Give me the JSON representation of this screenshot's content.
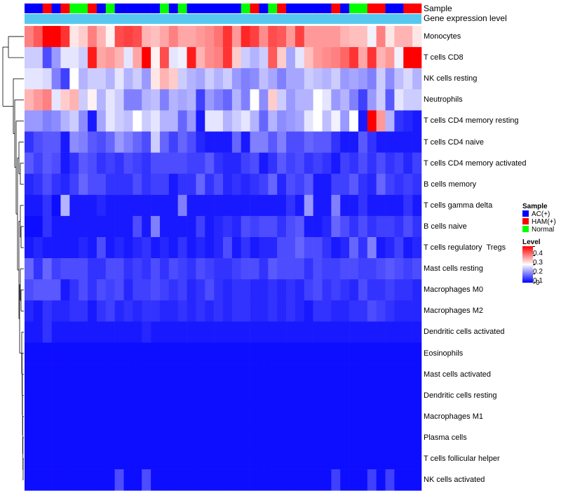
{
  "chart_data": {
    "type": "heatmap",
    "annotation_tracks": [
      "Sample",
      "Gene expression level"
    ],
    "rows": [
      "Monocytes",
      "T cells CD8",
      "NK cells resting",
      "Neutrophils",
      "T cells CD4 memory resting",
      "T cells CD4 naive",
      "T cells CD4 memory activated",
      "B cells memory",
      "T cells gamma delta",
      "B cells naive",
      "T cells regulatory  Tregs",
      "Mast cells resting",
      "Macrophages M0",
      "Macrophages M2",
      "Dendritic cells activated",
      "Eosinophils",
      "Mast cells activated",
      "Dendritic cells resting",
      "Macrophages M1",
      "Plasma cells",
      "T cells follicular helper",
      "NK cells activated"
    ],
    "sample_groups": [
      "AC",
      "AC",
      "HAM",
      "AC",
      "HAM",
      "Normal",
      "Normal",
      "HAM",
      "AC",
      "Normal",
      "AC",
      "AC",
      "AC",
      "AC",
      "AC",
      "Normal",
      "AC",
      "Normal",
      "AC",
      "AC",
      "AC",
      "AC",
      "AC",
      "AC",
      "Normal",
      "HAM",
      "AC",
      "Normal",
      "HAM",
      "AC",
      "AC",
      "AC",
      "AC",
      "AC",
      "HAM",
      "AC",
      "Normal",
      "Normal",
      "HAM",
      "HAM",
      "AC",
      "AC",
      "HAM",
      "HAM"
    ],
    "values": [
      [
        0.3,
        0.33,
        0.4,
        0.4,
        0.36,
        0.22,
        0.24,
        0.3,
        0.26,
        0.21,
        0.34,
        0.35,
        0.34,
        0.26,
        0.25,
        0.27,
        0.3,
        0.27,
        0.27,
        0.28,
        0.29,
        0.31,
        0.36,
        0.28,
        0.37,
        0.35,
        0.29,
        0.34,
        0.33,
        0.28,
        0.35,
        0.28,
        0.28,
        0.28,
        0.28,
        0.26,
        0.25,
        0.25,
        0.19,
        0.3,
        0.22,
        0.26,
        0.26,
        0.22
      ],
      [
        0.16,
        0.16,
        0.06,
        0.12,
        0.18,
        0.18,
        0.16,
        0.38,
        0.27,
        0.28,
        0.26,
        0.18,
        0.27,
        0.4,
        0.21,
        0.34,
        0.18,
        0.19,
        0.38,
        0.26,
        0.29,
        0.3,
        0.36,
        0.24,
        0.16,
        0.14,
        0.16,
        0.33,
        0.24,
        0.13,
        0.18,
        0.25,
        0.28,
        0.29,
        0.3,
        0.32,
        0.36,
        0.27,
        0.36,
        0.26,
        0.28,
        0.19,
        0.4,
        0.4
      ],
      [
        0.18,
        0.18,
        0.17,
        0.1,
        0.05,
        0.2,
        0.14,
        0.16,
        0.16,
        0.14,
        0.18,
        0.14,
        0.16,
        0.12,
        0.22,
        0.26,
        0.24,
        0.16,
        0.14,
        0.13,
        0.16,
        0.14,
        0.16,
        0.12,
        0.1,
        0.11,
        0.15,
        0.13,
        0.1,
        0.13,
        0.13,
        0.16,
        0.15,
        0.14,
        0.16,
        0.12,
        0.13,
        0.12,
        0.1,
        0.16,
        0.11,
        0.15,
        0.17,
        0.14
      ],
      [
        0.26,
        0.28,
        0.3,
        0.18,
        0.24,
        0.26,
        0.16,
        0.21,
        0.14,
        0.18,
        0.16,
        0.1,
        0.1,
        0.14,
        0.15,
        0.1,
        0.14,
        0.13,
        0.14,
        0.05,
        0.12,
        0.1,
        0.08,
        0.14,
        0.1,
        0.2,
        0.11,
        0.24,
        0.16,
        0.12,
        0.14,
        0.14,
        0.2,
        0.18,
        0.12,
        0.14,
        0.1,
        0.05,
        0.12,
        0.16,
        0.07,
        0.18,
        0.16,
        0.16
      ],
      [
        0.12,
        0.12,
        0.1,
        0.11,
        0.14,
        0.16,
        0.11,
        0.02,
        0.13,
        0.18,
        0.16,
        0.15,
        0.2,
        0.16,
        0.18,
        0.14,
        0.14,
        0.08,
        0.12,
        0.02,
        0.18,
        0.18,
        0.14,
        0.16,
        0.18,
        0.14,
        0.08,
        0.14,
        0.11,
        0.12,
        0.13,
        0.18,
        0.2,
        0.15,
        0.19,
        0.12,
        0.2,
        0.02,
        0.4,
        0.28,
        0.14,
        0.04,
        0.03,
        0.02
      ],
      [
        0.04,
        0.06,
        0.07,
        0.07,
        0.02,
        0.11,
        0.1,
        0.07,
        0.06,
        0.08,
        0.12,
        0.1,
        0.08,
        0.06,
        0.16,
        0.08,
        0.05,
        0.08,
        0.06,
        0.03,
        0.02,
        0.02,
        0.02,
        0.08,
        0.02,
        0.1,
        0.1,
        0.07,
        0.1,
        0.06,
        0.06,
        0.08,
        0.07,
        0.07,
        0.04,
        0.02,
        0.02,
        0.07,
        0.04,
        0.02,
        0.02,
        0.02,
        0.02,
        0.02
      ],
      [
        0.07,
        0.05,
        0.07,
        0.06,
        0.02,
        0.04,
        0.07,
        0.06,
        0.04,
        0.05,
        0.04,
        0.06,
        0.05,
        0.04,
        0.06,
        0.06,
        0.06,
        0.06,
        0.05,
        0.05,
        0.07,
        0.04,
        0.03,
        0.03,
        0.05,
        0.06,
        0.02,
        0.04,
        0.07,
        0.05,
        0.06,
        0.04,
        0.05,
        0.04,
        0.02,
        0.05,
        0.04,
        0.06,
        0.04,
        0.06,
        0.04,
        0.05,
        0.03,
        0.05
      ],
      [
        0.03,
        0.04,
        0.06,
        0.04,
        0.03,
        0.05,
        0.08,
        0.06,
        0.06,
        0.04,
        0.04,
        0.04,
        0.06,
        0.04,
        0.05,
        0.05,
        0.02,
        0.04,
        0.04,
        0.08,
        0.04,
        0.06,
        0.03,
        0.04,
        0.03,
        0.04,
        0.05,
        0.08,
        0.03,
        0.06,
        0.05,
        0.07,
        0.02,
        0.02,
        0.05,
        0.05,
        0.07,
        0.04,
        0.03,
        0.08,
        0.05,
        0.04,
        0.05,
        0.04
      ],
      [
        0.02,
        0.02,
        0.04,
        0.01,
        0.14,
        0.02,
        0.02,
        0.02,
        0.03,
        0.02,
        0.02,
        0.02,
        0.02,
        0.02,
        0.02,
        0.02,
        0.02,
        0.1,
        0.02,
        0.02,
        0.02,
        0.02,
        0.02,
        0.02,
        0.02,
        0.02,
        0.02,
        0.02,
        0.02,
        0.04,
        0.02,
        0.12,
        0.02,
        0.02,
        0.1,
        0.02,
        0.02,
        0.04,
        0.02,
        0.02,
        0.02,
        0.02,
        0.04,
        0.02
      ],
      [
        0.01,
        0.01,
        0.04,
        0.02,
        0.02,
        0.02,
        0.02,
        0.02,
        0.02,
        0.02,
        0.02,
        0.02,
        0.06,
        0.02,
        0.1,
        0.02,
        0.02,
        0.02,
        0.02,
        0.05,
        0.02,
        0.03,
        0.04,
        0.03,
        0.06,
        0.05,
        0.06,
        0.06,
        0.04,
        0.06,
        0.07,
        0.02,
        0.02,
        0.03,
        0.08,
        0.06,
        0.04,
        0.06,
        0.04,
        0.05,
        0.05,
        0.04,
        0.06,
        0.04
      ],
      [
        0.02,
        0.03,
        0.02,
        0.02,
        0.02,
        0.02,
        0.03,
        0.02,
        0.06,
        0.02,
        0.03,
        0.02,
        0.03,
        0.04,
        0.02,
        0.03,
        0.02,
        0.04,
        0.02,
        0.03,
        0.02,
        0.03,
        0.06,
        0.02,
        0.04,
        0.02,
        0.03,
        0.03,
        0.06,
        0.06,
        0.08,
        0.06,
        0.06,
        0.04,
        0.02,
        0.03,
        0.08,
        0.04,
        0.1,
        0.02,
        0.03,
        0.05,
        0.02,
        0.03
      ],
      [
        0.08,
        0.04,
        0.08,
        0.05,
        0.06,
        0.06,
        0.06,
        0.04,
        0.04,
        0.06,
        0.06,
        0.04,
        0.05,
        0.04,
        0.06,
        0.04,
        0.06,
        0.05,
        0.04,
        0.06,
        0.05,
        0.04,
        0.04,
        0.05,
        0.06,
        0.06,
        0.04,
        0.07,
        0.06,
        0.06,
        0.06,
        0.04,
        0.06,
        0.05,
        0.05,
        0.06,
        0.06,
        0.05,
        0.05,
        0.06,
        0.07,
        0.06,
        0.05,
        0.06
      ],
      [
        0.06,
        0.07,
        0.07,
        0.07,
        0.02,
        0.04,
        0.06,
        0.04,
        0.06,
        0.05,
        0.06,
        0.03,
        0.05,
        0.05,
        0.06,
        0.05,
        0.04,
        0.05,
        0.03,
        0.04,
        0.06,
        0.04,
        0.03,
        0.04,
        0.04,
        0.03,
        0.03,
        0.04,
        0.03,
        0.04,
        0.03,
        0.05,
        0.06,
        0.04,
        0.05,
        0.04,
        0.03,
        0.06,
        0.04,
        0.04,
        0.05,
        0.04,
        0.04,
        0.03
      ],
      [
        0.03,
        0.02,
        0.04,
        0.03,
        0.03,
        0.04,
        0.04,
        0.02,
        0.04,
        0.05,
        0.03,
        0.04,
        0.03,
        0.04,
        0.04,
        0.03,
        0.03,
        0.04,
        0.03,
        0.04,
        0.03,
        0.04,
        0.03,
        0.04,
        0.04,
        0.03,
        0.03,
        0.04,
        0.03,
        0.04,
        0.03,
        0.02,
        0.04,
        0.04,
        0.03,
        0.03,
        0.04,
        0.04,
        0.06,
        0.05,
        0.04,
        0.03,
        0.03,
        0.03
      ],
      [
        0.02,
        0.02,
        0.04,
        0.02,
        0.02,
        0.02,
        0.02,
        0.02,
        0.02,
        0.02,
        0.02,
        0.02,
        0.02,
        0.03,
        0.02,
        0.02,
        0.02,
        0.02,
        0.02,
        0.02,
        0.02,
        0.02,
        0.02,
        0.02,
        0.02,
        0.02,
        0.02,
        0.02,
        0.02,
        0.02,
        0.02,
        0.02,
        0.02,
        0.02,
        0.02,
        0.02,
        0.02,
        0.02,
        0.02,
        0.02,
        0.02,
        0.02,
        0.02,
        0.02
      ],
      [
        0.01,
        0.01,
        0.01,
        0.01,
        0.01,
        0.01,
        0.01,
        0.01,
        0.01,
        0.01,
        0.01,
        0.01,
        0.01,
        0.01,
        0.01,
        0.01,
        0.01,
        0.01,
        0.01,
        0.01,
        0.01,
        0.01,
        0.01,
        0.01,
        0.01,
        0.01,
        0.01,
        0.01,
        0.01,
        0.01,
        0.01,
        0.01,
        0.01,
        0.01,
        0.01,
        0.01,
        0.01,
        0.01,
        0.01,
        0.01,
        0.01,
        0.01,
        0.01,
        0.01
      ],
      [
        0.01,
        0.01,
        0.01,
        0.01,
        0.01,
        0.01,
        0.01,
        0.01,
        0.01,
        0.01,
        0.01,
        0.01,
        0.01,
        0.01,
        0.01,
        0.01,
        0.01,
        0.01,
        0.01,
        0.01,
        0.01,
        0.01,
        0.01,
        0.01,
        0.01,
        0.01,
        0.01,
        0.01,
        0.01,
        0.01,
        0.01,
        0.01,
        0.01,
        0.01,
        0.01,
        0.01,
        0.01,
        0.01,
        0.01,
        0.01,
        0.01,
        0.01,
        0.01,
        0.01
      ],
      [
        0.01,
        0.01,
        0.01,
        0.01,
        0.01,
        0.01,
        0.01,
        0.01,
        0.01,
        0.01,
        0.01,
        0.01,
        0.01,
        0.01,
        0.01,
        0.01,
        0.01,
        0.01,
        0.01,
        0.01,
        0.01,
        0.01,
        0.01,
        0.01,
        0.01,
        0.01,
        0.01,
        0.01,
        0.01,
        0.01,
        0.01,
        0.01,
        0.01,
        0.01,
        0.01,
        0.01,
        0.01,
        0.01,
        0.01,
        0.01,
        0.01,
        0.01,
        0.01,
        0.01
      ],
      [
        0.01,
        0.01,
        0.01,
        0.01,
        0.01,
        0.01,
        0.01,
        0.01,
        0.01,
        0.01,
        0.01,
        0.01,
        0.01,
        0.01,
        0.01,
        0.01,
        0.01,
        0.01,
        0.01,
        0.01,
        0.01,
        0.01,
        0.01,
        0.01,
        0.01,
        0.01,
        0.01,
        0.01,
        0.01,
        0.01,
        0.01,
        0.01,
        0.01,
        0.01,
        0.01,
        0.01,
        0.01,
        0.01,
        0.01,
        0.01,
        0.01,
        0.01,
        0.01,
        0.01
      ],
      [
        0.01,
        0.01,
        0.01,
        0.01,
        0.01,
        0.01,
        0.01,
        0.01,
        0.01,
        0.01,
        0.01,
        0.01,
        0.01,
        0.01,
        0.01,
        0.01,
        0.01,
        0.01,
        0.01,
        0.01,
        0.01,
        0.01,
        0.01,
        0.01,
        0.01,
        0.01,
        0.01,
        0.01,
        0.01,
        0.01,
        0.01,
        0.01,
        0.01,
        0.01,
        0.01,
        0.01,
        0.01,
        0.01,
        0.01,
        0.01,
        0.01,
        0.01,
        0.01,
        0.01
      ],
      [
        0.01,
        0.01,
        0.01,
        0.01,
        0.01,
        0.01,
        0.01,
        0.01,
        0.01,
        0.01,
        0.01,
        0.01,
        0.01,
        0.01,
        0.01,
        0.01,
        0.01,
        0.01,
        0.01,
        0.01,
        0.01,
        0.01,
        0.01,
        0.01,
        0.01,
        0.01,
        0.01,
        0.01,
        0.01,
        0.01,
        0.01,
        0.01,
        0.01,
        0.01,
        0.01,
        0.01,
        0.01,
        0.01,
        0.01,
        0.01,
        0.01,
        0.01,
        0.01,
        0.01
      ],
      [
        0.01,
        0.01,
        0.01,
        0.01,
        0.01,
        0.01,
        0.01,
        0.01,
        0.01,
        0.01,
        0.06,
        0.01,
        0.01,
        0.06,
        0.01,
        0.01,
        0.01,
        0.01,
        0.01,
        0.01,
        0.01,
        0.01,
        0.01,
        0.01,
        0.01,
        0.01,
        0.01,
        0.01,
        0.01,
        0.01,
        0.01,
        0.01,
        0.01,
        0.01,
        0.05,
        0.01,
        0.01,
        0.01,
        0.05,
        0.01,
        0.05,
        0.01,
        0.01,
        0.01
      ]
    ],
    "color_scale": {
      "min": 0,
      "mid": 0.2,
      "max": 0.4,
      "low": "#0000ff",
      "midColor": "#ffffff",
      "high": "#ff0000"
    },
    "legend_sample": {
      "title": "Sample",
      "items": [
        {
          "label": "AC(+)",
          "key": "AC",
          "color": "#0000ff"
        },
        {
          "label": "HAM(+)",
          "key": "HAM",
          "color": "#ff0000"
        },
        {
          "label": "Normal",
          "key": "Normal",
          "color": "#00ff00"
        }
      ]
    },
    "legend_level": {
      "title": "Level",
      "ticks": [
        "0.4",
        "0.3",
        "0.2",
        "0.1",
        "0"
      ],
      "tick_values": [
        0.4,
        0.3,
        0.2,
        0.1,
        0
      ]
    },
    "gene_expression_color": "#56c8f0"
  }
}
